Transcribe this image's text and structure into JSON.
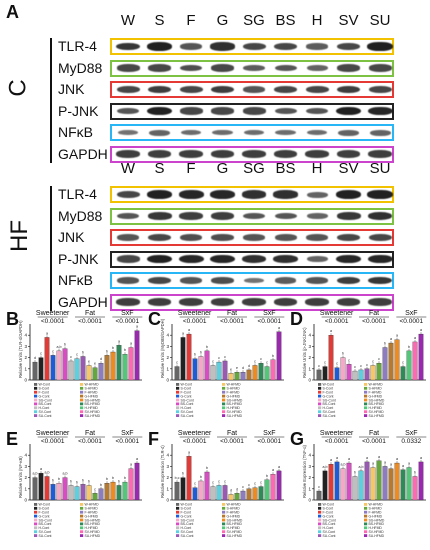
{
  "figure": {
    "panel_A_letter": "A",
    "lanes": [
      "W",
      "S",
      "F",
      "G",
      "SG",
      "BS",
      "H",
      "SV",
      "SU"
    ],
    "blot_groups": [
      {
        "label": "C",
        "rows": [
          {
            "protein": "TLR-4",
            "color": "#f2c200",
            "intensity": [
              0.8,
              0.95,
              0.6,
              0.85,
              0.7,
              0.7,
              0.55,
              0.7,
              0.95
            ]
          },
          {
            "protein": "MyD88",
            "color": "#7dc243",
            "intensity": [
              0.7,
              0.7,
              0.65,
              0.7,
              0.55,
              0.6,
              0.5,
              0.7,
              0.7
            ]
          },
          {
            "protein": "JNK",
            "color": "#e53935",
            "intensity": [
              0.7,
              0.75,
              0.7,
              0.75,
              0.6,
              0.7,
              0.7,
              0.75,
              0.7
            ]
          },
          {
            "protein": "P-JNK",
            "color": "#222222",
            "intensity": [
              0.6,
              0.95,
              0.7,
              0.7,
              0.7,
              0.6,
              0.6,
              0.95,
              0.9
            ]
          },
          {
            "protein": "NFκB",
            "color": "#29b6f6",
            "intensity": [
              0.4,
              0.5,
              0.45,
              0.45,
              0.45,
              0.45,
              0.45,
              0.5,
              0.5
            ]
          },
          {
            "protein": "GAPDH",
            "color": "#cc44cc",
            "intensity": [
              0.75,
              0.75,
              0.75,
              0.75,
              0.75,
              0.75,
              0.75,
              0.75,
              0.75
            ]
          }
        ]
      },
      {
        "label": "HF",
        "rows": [
          {
            "protein": "TLR-4",
            "color": "#f2c200",
            "intensity": [
              0.7,
              0.95,
              0.9,
              0.9,
              0.85,
              0.85,
              0.5,
              0.95,
              0.95
            ]
          },
          {
            "protein": "MyD88",
            "color": "#7dc243",
            "intensity": [
              0.6,
              0.8,
              0.75,
              0.75,
              0.6,
              0.6,
              0.5,
              0.8,
              0.85
            ]
          },
          {
            "protein": "JNK",
            "color": "#e53935",
            "intensity": [
              0.6,
              0.7,
              0.65,
              0.65,
              0.6,
              0.6,
              0.6,
              0.7,
              0.7
            ]
          },
          {
            "protein": "P-JNK",
            "color": "#222222",
            "intensity": [
              0.7,
              0.95,
              0.9,
              0.9,
              0.85,
              0.85,
              0.5,
              0.9,
              0.9
            ]
          },
          {
            "protein": "NFκB",
            "color": "#29b6f6",
            "intensity": [
              0.6,
              0.7,
              0.6,
              0.65,
              0.4,
              0.55,
              0.6,
              0.75,
              0.8
            ]
          },
          {
            "protein": "GAPDH",
            "color": "#cc44cc",
            "intensity": [
              0.75,
              0.75,
              0.75,
              0.75,
              0.75,
              0.75,
              0.75,
              0.75,
              0.75
            ]
          }
        ]
      }
    ]
  },
  "chart_data": [
    {
      "panel": "B",
      "type": "bar",
      "ylabel": "Relative Units (TLR-4/GAPDH)",
      "ylim": [
        0,
        5
      ],
      "groups": [
        "Sweetener",
        "Fat",
        "SxF"
      ],
      "pvalues": [
        "<0.0001",
        "<0.0001",
        "<0.0001"
      ],
      "values": [
        1.6,
        2.0,
        3.8,
        2.2,
        2.6,
        2.8,
        1.7,
        1.9,
        2.1,
        1.3,
        1.1,
        1.5,
        2.2,
        2.5,
        3.1,
        2.3,
        2.9,
        4.4
      ],
      "letters": [
        "d",
        "c",
        "a",
        "c",
        "a,b",
        "b",
        "c",
        "c",
        "b",
        "e",
        "e",
        "d",
        "b",
        "b",
        "a",
        "b",
        "a",
        "a"
      ]
    },
    {
      "panel": "C",
      "type": "bar",
      "ylabel": "Relative Units (MyD88/GAPDH)",
      "ylim": [
        0,
        5
      ],
      "groups": [
        "Sweetener",
        "Fat",
        "SxF"
      ],
      "pvalues": [
        "<0.0001",
        "<0.0001",
        "<0.0001"
      ],
      "values": [
        1.2,
        3.8,
        4.1,
        1.9,
        2.1,
        2.6,
        1.3,
        1.6,
        1.7,
        0.6,
        0.7,
        0.7,
        0.9,
        1.3,
        1.5,
        1.2,
        1.8,
        4.3
      ],
      "letters": [
        "c",
        "a",
        "a",
        "b",
        "b",
        "b",
        "c",
        "c",
        "c",
        "e",
        "e",
        "d",
        "d",
        "c",
        "c",
        "c",
        "b",
        "a"
      ]
    },
    {
      "panel": "D",
      "type": "bar",
      "ylabel": "Relative Units (p-JNK/JNK)",
      "ylim": [
        0,
        5
      ],
      "groups": [
        "Sweetener",
        "Fat",
        "SxF"
      ],
      "pvalues": [
        "<0.0001",
        "<0.0001",
        "<0.0001"
      ],
      "values": [
        0.9,
        1.2,
        4.0,
        1.1,
        2.0,
        1.4,
        0.8,
        0.9,
        1.0,
        1.3,
        1.5,
        2.9,
        3.3,
        3.6,
        1.2,
        2.6,
        3.4,
        4.1
      ],
      "letters": [
        "c",
        "c",
        "a",
        "c",
        "b",
        "c",
        "c",
        "c",
        "c",
        "c",
        "c",
        "b",
        "a",
        "a",
        "c",
        "b",
        "a",
        "a"
      ]
    },
    {
      "panel": "E",
      "type": "bar",
      "ylabel": "Relative Units (NF-κB)",
      "ylim": [
        0,
        5
      ],
      "groups": [
        "Sweetener",
        "Fat",
        "SxF"
      ],
      "pvalues": [
        "<0.0001",
        "<0.0001",
        "<0.0001"
      ],
      "values": [
        2.0,
        2.4,
        2.1,
        1.4,
        1.5,
        2.0,
        1.3,
        1.2,
        1.4,
        1.3,
        0.6,
        1.0,
        1.5,
        1.6,
        1.3,
        1.6,
        2.8,
        3.3
      ],
      "letters": [
        "a,b",
        "a",
        "a,b",
        "b",
        "b",
        "a,b",
        "b",
        "b",
        "b",
        "b",
        "c",
        "b",
        "b",
        "b",
        "b",
        "b",
        "a",
        "a"
      ]
    },
    {
      "panel": "F",
      "type": "bar",
      "ylabel": "Relative Expression (TLR-4)",
      "ylim": [
        0,
        5
      ],
      "groups": [
        "Sweetener",
        "Fat",
        "SxF"
      ],
      "pvalues": [
        "<0.0001",
        "<0.0001",
        "<0.0001"
      ],
      "values": [
        1.6,
        2.0,
        3.9,
        1.1,
        1.7,
        2.5,
        1.2,
        1.3,
        1.3,
        0.5,
        0.6,
        0.8,
        1.0,
        1.1,
        1.2,
        1.8,
        2.3,
        2.6
      ],
      "letters": [
        "b,c",
        "b",
        "a",
        "c",
        "b",
        "b",
        "c",
        "c",
        "c",
        "d",
        "d",
        "c",
        "c",
        "c",
        "c",
        "b",
        "a",
        "a"
      ]
    },
    {
      "panel": "G",
      "type": "bar",
      "ylabel": "Relative Expression (TNF-α)",
      "ylim": [
        0,
        5
      ],
      "groups": [
        "Sweetener",
        "Fat",
        "SxF"
      ],
      "pvalues": [
        "<0.0001",
        "<0.0001",
        "0.0332"
      ],
      "values": [
        0.8,
        2.6,
        3.2,
        3.4,
        2.8,
        3.3,
        2.1,
        2.6,
        3.4,
        2.9,
        3.5,
        3.0,
        2.8,
        3.3,
        2.7,
        2.9,
        2.1,
        3.4
      ],
      "letters": [
        "c",
        "a,b",
        "a",
        "a",
        "a,b",
        "a",
        "b",
        "a,b",
        "a",
        "a",
        "a",
        "a",
        "a",
        "a",
        "a",
        "a",
        "b",
        "a"
      ]
    }
  ],
  "bar_colors": [
    "#666666",
    "#222222",
    "#e53935",
    "#1e5bd8",
    "#f7a8c8",
    "#d94cc4",
    "#bfbfbf",
    "#5ad0e0",
    "#9b59b6",
    "#f6c667",
    "#64a83b",
    "#8e7cc3",
    "#b7792e",
    "#ef8a1e",
    "#2e8b57",
    "#50c878",
    "#ff69b4",
    "#9c27b0"
  ],
  "legend_labels": [
    "W-Cont",
    "S-Cont",
    "F-Cont",
    "G-Cont",
    "SG-Cont",
    "BS-Cont",
    "H-Cont",
    "SV-Cont",
    "SU-Cont",
    "W-HFMD",
    "S-HFMD",
    "F-HFMD",
    "G-HFMD",
    "SG-HFMD",
    "BS-HFMD",
    "H-HFMD",
    "SV-HFMD",
    "SU-HFMD"
  ]
}
